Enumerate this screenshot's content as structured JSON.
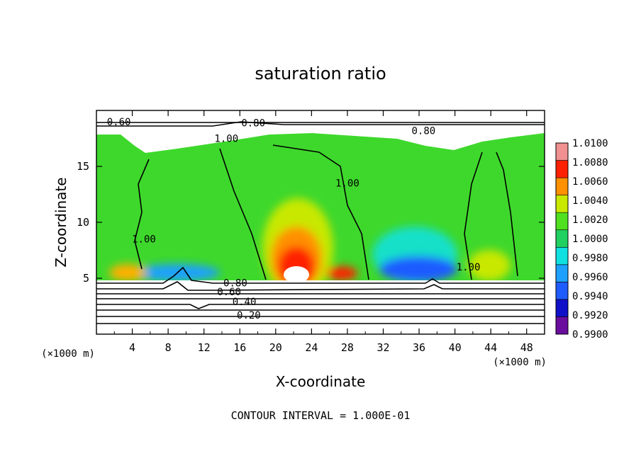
{
  "chart_data": {
    "type": "heatmap",
    "title": "saturation ratio",
    "xlabel": "X-coordinate",
    "ylabel": "Z-coordinate",
    "x_unit_label": "(×1000 m)",
    "x_unit_label_right": "(×1000 m)",
    "xlim": [
      0,
      50
    ],
    "ylim": [
      0,
      20
    ],
    "x_ticks": [
      4,
      8,
      12,
      16,
      20,
      24,
      28,
      32,
      36,
      40,
      44,
      48
    ],
    "y_ticks": [
      5,
      10,
      15
    ],
    "x_tick_labels": [
      "4",
      "8",
      "12",
      "16",
      "20",
      "24",
      "28",
      "32",
      "36",
      "40",
      "44",
      "48"
    ],
    "y_tick_labels": [
      "5",
      "10",
      "15"
    ],
    "colorbar": {
      "levels": [
        0.99,
        0.992,
        0.994,
        0.996,
        0.998,
        1.0,
        1.002,
        1.004,
        1.006,
        1.008,
        1.01
      ],
      "labels": [
        "1.0100",
        "1.0080",
        "1.0060",
        "1.0040",
        "1.0020",
        "1.0000",
        "0.9980",
        "0.9960",
        "0.9940",
        "0.9920",
        "0.9900"
      ],
      "colors": [
        "#6a0d9e",
        "#1010c8",
        "#1f5cff",
        "#1ea0ff",
        "#10e0e0",
        "#20d060",
        "#50e020",
        "#c8e800",
        "#ff9000",
        "#ff2000",
        "#f09090"
      ]
    },
    "contour_labels": [
      {
        "text": "0.60",
        "x": 2.5,
        "y": 19.0
      },
      {
        "text": "0.80",
        "x": 17.5,
        "y": 18.9
      },
      {
        "text": "0.80",
        "x": 36.5,
        "y": 18.2
      },
      {
        "text": "1.00",
        "x": 14.5,
        "y": 17.5
      },
      {
        "text": "1.00",
        "x": 28.0,
        "y": 13.5
      },
      {
        "text": "1.00",
        "x": 5.3,
        "y": 8.5
      },
      {
        "text": "1.00",
        "x": 41.5,
        "y": 6.0
      },
      {
        "text": "0.80",
        "x": 15.5,
        "y": 4.6
      },
      {
        "text": "0.60",
        "x": 14.8,
        "y": 3.8
      },
      {
        "text": "0.40",
        "x": 16.5,
        "y": 2.9
      },
      {
        "text": "0.20",
        "x": 17.0,
        "y": 1.7
      }
    ],
    "footer": "CONTOUR INTERVAL = 1.000E-01"
  }
}
